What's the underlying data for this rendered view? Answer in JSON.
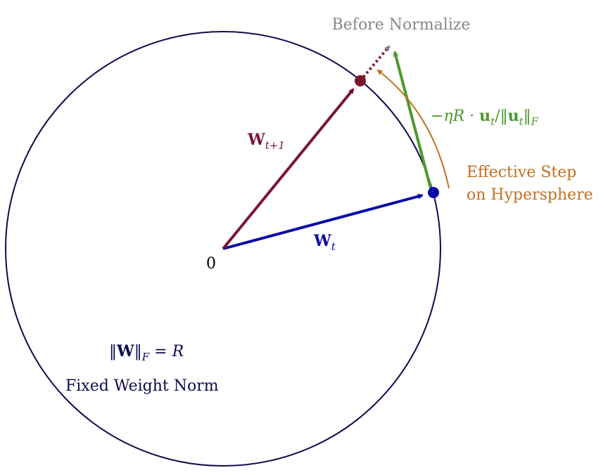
{
  "origin_label": "0",
  "before_normalize": "Before Normalize",
  "w_next": [
    {
      "text": "W",
      "style": "bold"
    },
    {
      "text": "t+1",
      "style": "sub"
    }
  ],
  "w_t": [
    {
      "text": "W",
      "style": "bold"
    },
    {
      "text": "t",
      "style": "sub"
    }
  ],
  "step_formula": [
    {
      "text": "−ηR · ",
      "style": "italic"
    },
    {
      "text": "u",
      "style": "bold"
    },
    {
      "text": "t",
      "style": "sub"
    },
    {
      "text": "/‖",
      "style": "normal"
    },
    {
      "text": "u",
      "style": "bold"
    },
    {
      "text": "t",
      "style": "sub"
    },
    {
      "text": "‖",
      "style": "normal"
    },
    {
      "text": "F",
      "style": "sub"
    }
  ],
  "effective_step": [
    "Effective Step",
    "on Hypersphere"
  ],
  "norm_formula": [
    {
      "text": "‖",
      "style": "normal"
    },
    {
      "text": "W",
      "style": "bold"
    },
    {
      "text": "‖",
      "style": "normal"
    },
    {
      "text": "F",
      "style": "sub"
    },
    {
      "text": " = ",
      "style": "normal"
    },
    {
      "text": "R",
      "style": "italic"
    }
  ],
  "fixed_norm": "Fixed Weight Norm"
}
